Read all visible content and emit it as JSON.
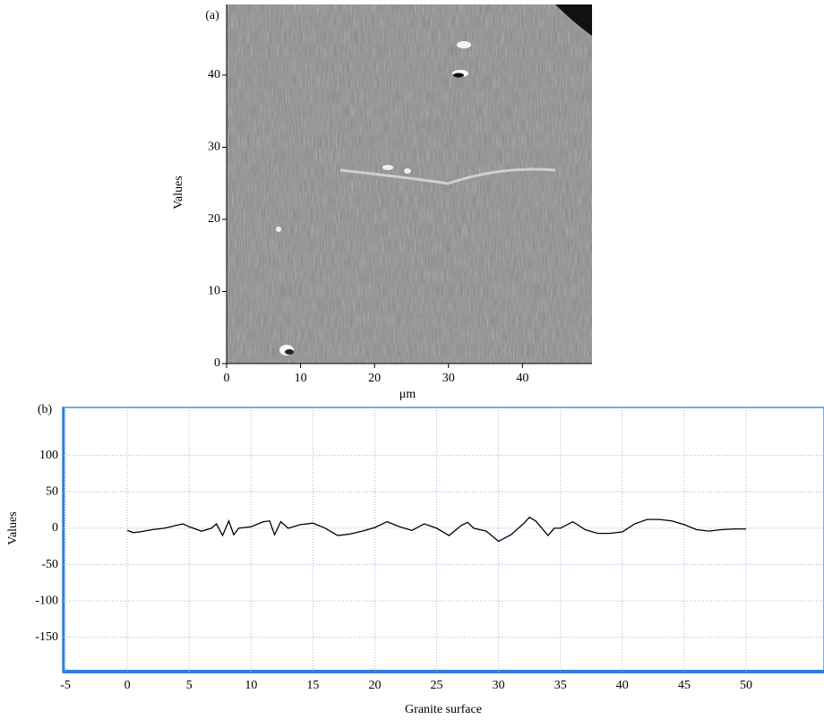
{
  "chart_data": [
    {
      "type": "image",
      "panel": "(a)",
      "xlabel": "μm",
      "ylabel": "Values",
      "xlim": [
        0,
        49.4
      ],
      "ylim": [
        0,
        49.8
      ],
      "xticks": [
        0,
        10,
        20,
        30,
        40
      ],
      "yticks": [
        0,
        10,
        20,
        30,
        40
      ]
    },
    {
      "type": "line",
      "panel": "(b)",
      "xlabel": "Granite surface",
      "ylabel": "Values",
      "xlim": [
        -5.15,
        56.3
      ],
      "ylim": [
        -197,
        166
      ],
      "xticks": [
        -5,
        0,
        5,
        10,
        15,
        20,
        25,
        30,
        35,
        40,
        45,
        50
      ],
      "yticks": [
        -150,
        -100,
        -50,
        0,
        50,
        100
      ],
      "grid": true,
      "series": [
        {
          "color": "#000000",
          "x": [
            0,
            0.5,
            1,
            2,
            3,
            4,
            4.5,
            5,
            6,
            6.8,
            7.2,
            7.7,
            8.2,
            8.6,
            9,
            10,
            11,
            11.5,
            11.9,
            12.4,
            13,
            14,
            15,
            16,
            17,
            18,
            19,
            20,
            21,
            22,
            23,
            24,
            25,
            26,
            27,
            27.5,
            28,
            29,
            30,
            31,
            32,
            32.5,
            33,
            34,
            34.5,
            35,
            36,
            37,
            38,
            39,
            40,
            41,
            42,
            43,
            44,
            45,
            46,
            47,
            48,
            49,
            50
          ],
          "values": [
            -3,
            -6,
            -5,
            -2,
            0,
            4,
            6,
            2,
            -4,
            0,
            6,
            -10,
            10,
            -9,
            0,
            2,
            9,
            10,
            -9,
            9,
            0,
            5,
            7,
            0,
            -10,
            -8,
            -4,
            1,
            9,
            2,
            -3,
            6,
            0,
            -10,
            4,
            8,
            0,
            -4,
            -18,
            -9,
            6,
            15,
            10,
            -10,
            0,
            0,
            9,
            -2,
            -7,
            -7,
            -5,
            6,
            12,
            12,
            10,
            5,
            -2,
            -4,
            -2,
            -1,
            -1
          ]
        }
      ]
    }
  ]
}
